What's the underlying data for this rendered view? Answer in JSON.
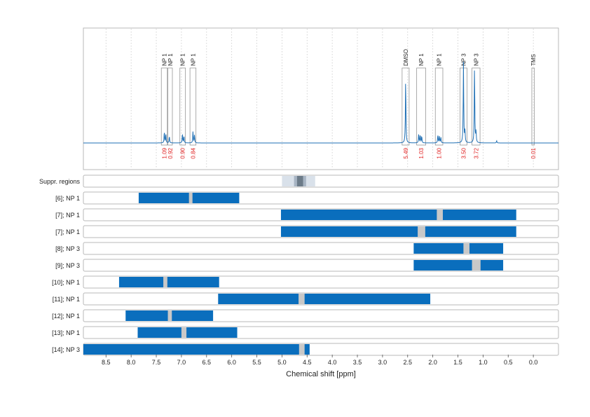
{
  "chart_data": {
    "type": "nmr-spectrum-with-region-bars",
    "xlabel": "Chemical shift [ppm]",
    "x_reversed": true,
    "xlim": [
      8.95,
      -0.5
    ],
    "x_ticks": [
      "8.5",
      "8.0",
      "7.5",
      "7.0",
      "6.5",
      "6.0",
      "5.5",
      "5.0",
      "4.5",
      "4.0",
      "3.5",
      "3.0",
      "2.5",
      "2.0",
      "1.5",
      "1.0",
      "0.5",
      "0.0"
    ],
    "grid": true,
    "colors": {
      "spectrum": "#1f6fb4",
      "bar": "#0a6ebd",
      "gap": "#c8c8c8",
      "integral": "#e02020",
      "suppr_light": "#d9e1ea",
      "suppr_mid": "#a8b5c4",
      "suppr_dark": "#6c7b89"
    },
    "spectrum_peaks": [
      {
        "ppm": 7.34,
        "h": 0.1
      },
      {
        "ppm": 7.31,
        "h": 0.08
      },
      {
        "ppm": 7.24,
        "h": 0.06
      },
      {
        "ppm": 6.98,
        "h": 0.08
      },
      {
        "ppm": 6.95,
        "h": 0.06
      },
      {
        "ppm": 6.77,
        "h": 0.1
      },
      {
        "ppm": 6.74,
        "h": 0.07
      },
      {
        "ppm": 2.54,
        "h": 0.57
      },
      {
        "ppm": 2.28,
        "h": 0.08
      },
      {
        "ppm": 2.25,
        "h": 0.07
      },
      {
        "ppm": 2.22,
        "h": 0.06
      },
      {
        "ppm": 1.9,
        "h": 0.07
      },
      {
        "ppm": 1.87,
        "h": 0.06
      },
      {
        "ppm": 1.84,
        "h": 0.05
      },
      {
        "ppm": 1.39,
        "h": 0.72
      },
      {
        "ppm": 1.36,
        "h": 0.1
      },
      {
        "ppm": 1.17,
        "h": 0.68
      },
      {
        "ppm": 1.14,
        "h": 0.1
      },
      {
        "ppm": 0.73,
        "h": 0.02
      }
    ],
    "peak_annotations": [
      {
        "label": "NP 1",
        "from": 7.4,
        "to": 7.28,
        "integral": "1.09"
      },
      {
        "label": "NP 1",
        "from": 7.27,
        "to": 7.18,
        "integral": "0.92"
      },
      {
        "label": "NP 1",
        "from": 7.03,
        "to": 6.92,
        "integral": "0.90"
      },
      {
        "label": "NP 1",
        "from": 6.83,
        "to": 6.71,
        "integral": "0.84"
      },
      {
        "label": "DMSO",
        "from": 2.61,
        "to": 2.47,
        "integral": "5.49"
      },
      {
        "label": "NP 1",
        "from": 2.32,
        "to": 2.14,
        "integral": "1.03"
      },
      {
        "label": "NP 1",
        "from": 1.95,
        "to": 1.8,
        "integral": "1.00"
      },
      {
        "label": "NP 3",
        "from": 1.46,
        "to": 1.32,
        "integral": "3.50"
      },
      {
        "label": "NP 3",
        "from": 1.22,
        "to": 1.06,
        "integral": "3.72"
      },
      {
        "label": "TMS",
        "from": 0.03,
        "to": -0.02,
        "integral": "0.01"
      }
    ],
    "suppression_row": {
      "label": "Suppr. regions",
      "light": [
        5.0,
        4.34
      ],
      "mid": [
        4.76,
        4.52
      ],
      "dark": [
        4.7,
        4.58
      ]
    },
    "region_rows": [
      {
        "label": "[6]; NP 1",
        "from": 7.85,
        "to": 5.85,
        "gap": [
          6.85,
          6.78
        ]
      },
      {
        "label": "[7]; NP 1",
        "from": 5.02,
        "to": 0.34,
        "gap": [
          1.92,
          1.8
        ]
      },
      {
        "label": "[7]; NP 1",
        "from": 5.02,
        "to": 0.34,
        "gap": [
          2.3,
          2.15
        ]
      },
      {
        "label": "[8]; NP 3",
        "from": 2.38,
        "to": 0.6,
        "gap": [
          1.39,
          1.27
        ]
      },
      {
        "label": "[9]; NP 3",
        "from": 2.38,
        "to": 0.6,
        "gap": [
          1.22,
          1.05
        ]
      },
      {
        "label": "[10]; NP 1",
        "from": 8.24,
        "to": 6.25,
        "gap": [
          7.36,
          7.28
        ]
      },
      {
        "label": "[11]; NP 1",
        "from": 6.27,
        "to": 2.05,
        "gap": [
          4.67,
          4.55
        ]
      },
      {
        "label": "[12]; NP 1",
        "from": 8.11,
        "to": 6.37,
        "gap": [
          7.27,
          7.19
        ]
      },
      {
        "label": "[13]; NP 1",
        "from": 7.87,
        "to": 5.89,
        "gap": [
          7.0,
          6.9
        ]
      },
      {
        "label": "[14]; NP 3",
        "from": 8.95,
        "to": 4.45,
        "gap": [
          4.66,
          4.55
        ]
      }
    ]
  }
}
